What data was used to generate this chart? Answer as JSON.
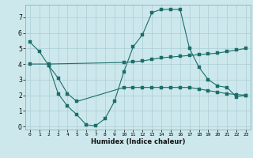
{
  "xlabel": "Humidex (Indice chaleur)",
  "bg_color": "#cde8ec",
  "grid_color": "#aacdd4",
  "line_color": "#1a6e6a",
  "line1_x": [
    0,
    1,
    2,
    3,
    4,
    5,
    6,
    7,
    8,
    9,
    10,
    11,
    12,
    13,
    14,
    15,
    16,
    17,
    18,
    19,
    20,
    21,
    22,
    23
  ],
  "line1_y": [
    5.4,
    4.8,
    3.9,
    2.1,
    1.3,
    0.75,
    0.1,
    0.05,
    0.5,
    1.6,
    3.5,
    5.1,
    5.9,
    7.3,
    7.5,
    7.5,
    7.5,
    5.0,
    3.8,
    3.0,
    2.6,
    2.5,
    1.9,
    2.0
  ],
  "line2_x": [
    0,
    2,
    10,
    11,
    12,
    13,
    14,
    15,
    16,
    17,
    18,
    19,
    20,
    21,
    22,
    23
  ],
  "line2_y": [
    4.0,
    4.0,
    4.1,
    4.15,
    4.2,
    4.3,
    4.4,
    4.45,
    4.5,
    4.55,
    4.6,
    4.65,
    4.7,
    4.8,
    4.9,
    5.0
  ],
  "line3_x": [
    2,
    3,
    4,
    5,
    10,
    11,
    12,
    13,
    14,
    15,
    16,
    17,
    18,
    19,
    20,
    21,
    22,
    23
  ],
  "line3_y": [
    3.9,
    3.1,
    2.1,
    1.6,
    2.5,
    2.5,
    2.5,
    2.5,
    2.5,
    2.5,
    2.5,
    2.5,
    2.4,
    2.3,
    2.2,
    2.1,
    2.05,
    2.0
  ],
  "xlim": [
    -0.5,
    23.5
  ],
  "ylim": [
    -0.2,
    7.8
  ],
  "yticks": [
    0,
    1,
    2,
    3,
    4,
    5,
    6,
    7
  ],
  "xticks": [
    0,
    1,
    2,
    3,
    4,
    5,
    6,
    7,
    8,
    9,
    10,
    11,
    12,
    13,
    14,
    15,
    16,
    17,
    18,
    19,
    20,
    21,
    22,
    23
  ]
}
